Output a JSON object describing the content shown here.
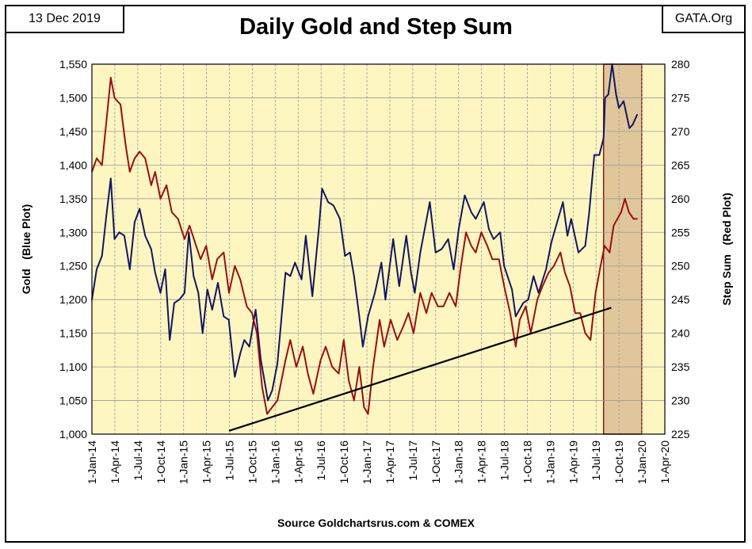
{
  "header": {
    "date": "13 Dec 2019",
    "source_tag": "GATA.Org",
    "title": "Daily Gold and Step Sum"
  },
  "footer": {
    "source": "Source Goldchartsrus.com & COMEX"
  },
  "colors": {
    "plot_bg": "#fdf6c1",
    "gold_line": "#13165f",
    "step_line": "#9a0f12",
    "trend_line": "#000000",
    "highlight_fill": "#dfc79b",
    "highlight_border": "#8a1a1a"
  },
  "chart_data": {
    "type": "line",
    "title": "Daily Gold and Step Sum",
    "x_tick_labels": [
      "1-Jan-14",
      "1-Apr-14",
      "1-Jul-14",
      "1-Oct-14",
      "1-Jan-15",
      "1-Apr-15",
      "1-Jul-15",
      "1-Oct-15",
      "1-Jan-16",
      "1-Apr-16",
      "1-Jul-16",
      "1-Oct-16",
      "1-Jan-17",
      "1-Apr-17",
      "1-Jul-17",
      "1-Oct-17",
      "1-Jan-18",
      "1-Apr-18",
      "1-Jul-18",
      "1-Oct-18",
      "1-Jan-19",
      "1-Apr-19",
      "1-Jul-19",
      "1-Oct-19",
      "1-Jan-20",
      "1-Apr-20"
    ],
    "left_axis": {
      "label": "Gold   (Blue Plot)",
      "range": [
        1000,
        1550
      ],
      "tick_labels": [
        "1,000",
        "1,050",
        "1,100",
        "1,150",
        "1,200",
        "1,250",
        "1,300",
        "1,350",
        "1,400",
        "1,450",
        "1,500",
        "1,550"
      ]
    },
    "right_axis": {
      "label": "Step Sum   (Red Plot)",
      "range": [
        225,
        280
      ],
      "tick_labels": [
        "225",
        "230",
        "235",
        "240",
        "245",
        "250",
        "255",
        "260",
        "265",
        "270",
        "275",
        "280"
      ]
    },
    "grid": true,
    "highlight": {
      "from": "2019-08-01",
      "to": "2019-12-31"
    },
    "series": [
      {
        "name": "Gold   (Blue Plot)",
        "axis": "left",
        "points": [
          [
            "2014-01-01",
            1200
          ],
          [
            "2014-01-20",
            1245
          ],
          [
            "2014-02-10",
            1265
          ],
          [
            "2014-03-01",
            1330
          ],
          [
            "2014-03-17",
            1380
          ],
          [
            "2014-04-01",
            1290
          ],
          [
            "2014-04-20",
            1300
          ],
          [
            "2014-05-10",
            1295
          ],
          [
            "2014-06-01",
            1245
          ],
          [
            "2014-06-20",
            1315
          ],
          [
            "2014-07-10",
            1335
          ],
          [
            "2014-08-01",
            1295
          ],
          [
            "2014-08-25",
            1275
          ],
          [
            "2014-09-10",
            1240
          ],
          [
            "2014-10-01",
            1210
          ],
          [
            "2014-10-20",
            1245
          ],
          [
            "2014-11-07",
            1140
          ],
          [
            "2014-11-25",
            1195
          ],
          [
            "2014-12-15",
            1200
          ],
          [
            "2015-01-05",
            1210
          ],
          [
            "2015-01-22",
            1300
          ],
          [
            "2015-02-10",
            1235
          ],
          [
            "2015-03-01",
            1210
          ],
          [
            "2015-03-18",
            1150
          ],
          [
            "2015-04-06",
            1215
          ],
          [
            "2015-04-25",
            1185
          ],
          [
            "2015-05-18",
            1225
          ],
          [
            "2015-06-10",
            1175
          ],
          [
            "2015-06-30",
            1170
          ],
          [
            "2015-07-24",
            1085
          ],
          [
            "2015-08-15",
            1120
          ],
          [
            "2015-08-31",
            1140
          ],
          [
            "2015-09-20",
            1130
          ],
          [
            "2015-10-15",
            1185
          ],
          [
            "2015-11-05",
            1110
          ],
          [
            "2015-12-03",
            1050
          ],
          [
            "2015-12-20",
            1065
          ],
          [
            "2016-01-10",
            1105
          ],
          [
            "2016-02-11",
            1240
          ],
          [
            "2016-03-01",
            1235
          ],
          [
            "2016-03-20",
            1255
          ],
          [
            "2016-04-15",
            1230
          ],
          [
            "2016-05-02",
            1295
          ],
          [
            "2016-05-28",
            1205
          ],
          [
            "2016-06-24",
            1310
          ],
          [
            "2016-07-06",
            1365
          ],
          [
            "2016-07-30",
            1345
          ],
          [
            "2016-08-20",
            1340
          ],
          [
            "2016-09-15",
            1320
          ],
          [
            "2016-10-05",
            1265
          ],
          [
            "2016-10-25",
            1270
          ],
          [
            "2016-11-10",
            1235
          ],
          [
            "2016-12-01",
            1175
          ],
          [
            "2016-12-15",
            1130
          ],
          [
            "2017-01-05",
            1175
          ],
          [
            "2017-02-01",
            1210
          ],
          [
            "2017-02-27",
            1255
          ],
          [
            "2017-03-15",
            1200
          ],
          [
            "2017-04-15",
            1290
          ],
          [
            "2017-05-09",
            1220
          ],
          [
            "2017-06-06",
            1295
          ],
          [
            "2017-06-25",
            1240
          ],
          [
            "2017-07-10",
            1210
          ],
          [
            "2017-08-01",
            1270
          ],
          [
            "2017-09-08",
            1345
          ],
          [
            "2017-10-01",
            1270
          ],
          [
            "2017-10-25",
            1275
          ],
          [
            "2017-11-20",
            1290
          ],
          [
            "2017-12-12",
            1245
          ],
          [
            "2018-01-01",
            1305
          ],
          [
            "2018-01-25",
            1355
          ],
          [
            "2018-02-20",
            1330
          ],
          [
            "2018-03-10",
            1320
          ],
          [
            "2018-04-11",
            1345
          ],
          [
            "2018-05-01",
            1305
          ],
          [
            "2018-05-20",
            1290
          ],
          [
            "2018-06-15",
            1300
          ],
          [
            "2018-07-01",
            1250
          ],
          [
            "2018-08-01",
            1215
          ],
          [
            "2018-08-16",
            1175
          ],
          [
            "2018-09-15",
            1195
          ],
          [
            "2018-10-05",
            1200
          ],
          [
            "2018-10-26",
            1235
          ],
          [
            "2018-11-15",
            1210
          ],
          [
            "2018-12-15",
            1245
          ],
          [
            "2019-01-05",
            1285
          ],
          [
            "2019-02-20",
            1345
          ],
          [
            "2019-03-10",
            1295
          ],
          [
            "2019-03-25",
            1320
          ],
          [
            "2019-04-23",
            1270
          ],
          [
            "2019-05-20",
            1280
          ],
          [
            "2019-06-05",
            1330
          ],
          [
            "2019-06-25",
            1415
          ],
          [
            "2019-07-15",
            1415
          ],
          [
            "2019-08-01",
            1440
          ],
          [
            "2019-08-07",
            1500
          ],
          [
            "2019-08-20",
            1505
          ],
          [
            "2019-09-04",
            1550
          ],
          [
            "2019-09-20",
            1505
          ],
          [
            "2019-10-01",
            1485
          ],
          [
            "2019-10-20",
            1495
          ],
          [
            "2019-11-12",
            1455
          ],
          [
            "2019-11-25",
            1460
          ],
          [
            "2019-12-13",
            1475
          ]
        ]
      },
      {
        "name": "Step Sum   (Red Plot)",
        "axis": "right",
        "points": [
          [
            "2014-01-01",
            264
          ],
          [
            "2014-01-20",
            266
          ],
          [
            "2014-02-10",
            265
          ],
          [
            "2014-03-01",
            272
          ],
          [
            "2014-03-17",
            278
          ],
          [
            "2014-04-01",
            275
          ],
          [
            "2014-04-25",
            274
          ],
          [
            "2014-05-15",
            268
          ],
          [
            "2014-06-01",
            264
          ],
          [
            "2014-06-20",
            266
          ],
          [
            "2014-07-10",
            267
          ],
          [
            "2014-08-01",
            266
          ],
          [
            "2014-08-25",
            262
          ],
          [
            "2014-09-10",
            264
          ],
          [
            "2014-10-01",
            260
          ],
          [
            "2014-10-25",
            262
          ],
          [
            "2014-11-15",
            258
          ],
          [
            "2014-12-10",
            257
          ],
          [
            "2015-01-05",
            254
          ],
          [
            "2015-01-25",
            256
          ],
          [
            "2015-02-20",
            253
          ],
          [
            "2015-03-10",
            251
          ],
          [
            "2015-04-01",
            253
          ],
          [
            "2015-04-25",
            248
          ],
          [
            "2015-05-15",
            251
          ],
          [
            "2015-06-10",
            252
          ],
          [
            "2015-07-01",
            246
          ],
          [
            "2015-07-24",
            250
          ],
          [
            "2015-08-15",
            248
          ],
          [
            "2015-09-10",
            244
          ],
          [
            "2015-10-01",
            243
          ],
          [
            "2015-10-20",
            240
          ],
          [
            "2015-11-10",
            232
          ],
          [
            "2015-11-30",
            228
          ],
          [
            "2015-12-20",
            229
          ],
          [
            "2016-01-10",
            230
          ],
          [
            "2016-02-11",
            236
          ],
          [
            "2016-03-01",
            239
          ],
          [
            "2016-03-25",
            235
          ],
          [
            "2016-04-20",
            238
          ],
          [
            "2016-05-10",
            234
          ],
          [
            "2016-06-01",
            231
          ],
          [
            "2016-06-30",
            236
          ],
          [
            "2016-07-20",
            238
          ],
          [
            "2016-08-15",
            235
          ],
          [
            "2016-09-10",
            234
          ],
          [
            "2016-09-30",
            239
          ],
          [
            "2016-10-20",
            233
          ],
          [
            "2016-11-10",
            230
          ],
          [
            "2016-12-01",
            235
          ],
          [
            "2016-12-20",
            229
          ],
          [
            "2017-01-05",
            228
          ],
          [
            "2017-01-25",
            235
          ],
          [
            "2017-02-20",
            242
          ],
          [
            "2017-03-10",
            238
          ],
          [
            "2017-04-05",
            242
          ],
          [
            "2017-05-01",
            239
          ],
          [
            "2017-05-25",
            241
          ],
          [
            "2017-06-15",
            243
          ],
          [
            "2017-07-05",
            240
          ],
          [
            "2017-08-01",
            246
          ],
          [
            "2017-08-25",
            243
          ],
          [
            "2017-09-15",
            246
          ],
          [
            "2017-10-10",
            244
          ],
          [
            "2017-11-01",
            244
          ],
          [
            "2017-11-25",
            246
          ],
          [
            "2017-12-20",
            244
          ],
          [
            "2018-01-10",
            250
          ],
          [
            "2018-01-30",
            255
          ],
          [
            "2018-02-20",
            253
          ],
          [
            "2018-03-10",
            252
          ],
          [
            "2018-04-01",
            255
          ],
          [
            "2018-04-25",
            253
          ],
          [
            "2018-05-15",
            251
          ],
          [
            "2018-06-10",
            251
          ],
          [
            "2018-07-01",
            247
          ],
          [
            "2018-07-25",
            243
          ],
          [
            "2018-08-16",
            238
          ],
          [
            "2018-09-01",
            242
          ],
          [
            "2018-09-25",
            244
          ],
          [
            "2018-10-15",
            240
          ],
          [
            "2018-11-10",
            245
          ],
          [
            "2018-12-01",
            247
          ],
          [
            "2018-12-25",
            249
          ],
          [
            "2019-01-15",
            250
          ],
          [
            "2019-02-10",
            252
          ],
          [
            "2019-02-28",
            249
          ],
          [
            "2019-03-20",
            247
          ],
          [
            "2019-04-10",
            243
          ],
          [
            "2019-04-30",
            243
          ],
          [
            "2019-05-20",
            240
          ],
          [
            "2019-06-10",
            239
          ],
          [
            "2019-06-30",
            246
          ],
          [
            "2019-07-20",
            250
          ],
          [
            "2019-08-05",
            253
          ],
          [
            "2019-08-25",
            252
          ],
          [
            "2019-09-10",
            256
          ],
          [
            "2019-09-25",
            257
          ],
          [
            "2019-10-10",
            258
          ],
          [
            "2019-10-25",
            260
          ],
          [
            "2019-11-10",
            258
          ],
          [
            "2019-11-28",
            257
          ],
          [
            "2019-12-13",
            257
          ]
        ]
      },
      {
        "name": "",
        "axis": "right",
        "style": "trend",
        "points": [
          [
            "2015-07-01",
            225.5
          ],
          [
            "2019-09-01",
            243.8
          ]
        ]
      }
    ]
  }
}
